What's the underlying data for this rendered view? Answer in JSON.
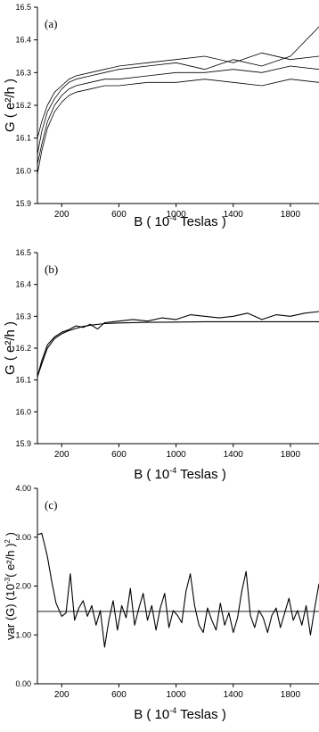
{
  "chart_data": [
    {
      "type": "line",
      "panel_label": "(a)",
      "xlabel": "B ( 10",
      "xlabel_exp": "-4",
      "xlabel_tail": " Teslas )",
      "ylabel": "G ( e²/h )",
      "xlim": [
        30,
        2000
      ],
      "ylim": [
        15.9,
        16.5
      ],
      "x_ticks": [
        200,
        600,
        1000,
        1400,
        1800
      ],
      "y_ticks": [
        "15.9",
        "16.0",
        "16.1",
        "16.2",
        "16.3",
        "16.4",
        "16.5"
      ],
      "y_tick_values": [
        15.9,
        16.0,
        16.1,
        16.2,
        16.3,
        16.4,
        16.5
      ],
      "series": [
        {
          "x": [
            30,
            60,
            100,
            150,
            200,
            250,
            300,
            400,
            500,
            600,
            800,
            1000,
            1200,
            1400,
            1600,
            1800,
            2000
          ],
          "values": [
            16.02,
            16.08,
            16.15,
            16.2,
            16.23,
            16.25,
            16.26,
            16.27,
            16.28,
            16.28,
            16.29,
            16.3,
            16.3,
            16.31,
            16.3,
            16.32,
            16.31
          ]
        },
        {
          "x": [
            30,
            60,
            100,
            150,
            200,
            250,
            300,
            400,
            500,
            600,
            800,
            1000,
            1200,
            1400,
            1600,
            1800,
            2000
          ],
          "values": [
            16.05,
            16.12,
            16.18,
            16.22,
            16.25,
            16.27,
            16.28,
            16.29,
            16.3,
            16.31,
            16.32,
            16.33,
            16.31,
            16.34,
            16.32,
            16.35,
            16.44
          ]
        },
        {
          "x": [
            30,
            60,
            100,
            150,
            200,
            250,
            300,
            400,
            500,
            600,
            800,
            1000,
            1200,
            1400,
            1600,
            1800,
            2000
          ],
          "values": [
            15.99,
            16.06,
            16.13,
            16.18,
            16.21,
            16.23,
            16.24,
            16.25,
            16.26,
            16.26,
            16.27,
            16.27,
            16.28,
            16.27,
            16.26,
            16.28,
            16.27
          ]
        },
        {
          "x": [
            30,
            60,
            100,
            150,
            200,
            250,
            300,
            400,
            500,
            600,
            800,
            1000,
            1200,
            1400,
            1600,
            1800,
            2000
          ],
          "values": [
            16.1,
            16.15,
            16.2,
            16.24,
            16.26,
            16.28,
            16.29,
            16.3,
            16.31,
            16.32,
            16.33,
            16.34,
            16.35,
            16.33,
            16.36,
            16.34,
            16.35
          ]
        }
      ]
    },
    {
      "type": "line",
      "panel_label": "(b)",
      "xlabel": "B ( 10",
      "xlabel_exp": "-4",
      "xlabel_tail": " Teslas )",
      "ylabel": "G ( e²/h )",
      "xlim": [
        30,
        2000
      ],
      "ylim": [
        15.9,
        16.5
      ],
      "x_ticks": [
        200,
        600,
        1000,
        1400,
        1800
      ],
      "y_ticks": [
        "15.9",
        "16.0",
        "16.1",
        "16.2",
        "16.3",
        "16.4",
        "16.5"
      ],
      "y_tick_values": [
        15.9,
        16.0,
        16.1,
        16.2,
        16.3,
        16.4,
        16.5
      ],
      "series": [
        {
          "x": [
            30,
            60,
            100,
            150,
            200,
            250,
            300,
            350,
            400,
            500,
            600,
            800,
            1000,
            1200,
            1400,
            1600,
            1800,
            2000
          ],
          "values": [
            16.11,
            16.15,
            16.2,
            16.23,
            16.245,
            16.255,
            16.262,
            16.268,
            16.272,
            16.277,
            16.279,
            16.281,
            16.282,
            16.283,
            16.283,
            16.283,
            16.283,
            16.283
          ]
        },
        {
          "x": [
            30,
            60,
            100,
            150,
            200,
            250,
            300,
            350,
            400,
            450,
            500,
            600,
            700,
            800,
            900,
            1000,
            1100,
            1200,
            1300,
            1400,
            1500,
            1600,
            1700,
            1800,
            1900,
            2000
          ],
          "values": [
            16.11,
            16.16,
            16.21,
            16.235,
            16.25,
            16.258,
            16.27,
            16.265,
            16.275,
            16.26,
            16.28,
            16.285,
            16.29,
            16.285,
            16.295,
            16.29,
            16.305,
            16.3,
            16.295,
            16.3,
            16.31,
            16.29,
            16.305,
            16.3,
            16.31,
            16.315
          ]
        }
      ]
    },
    {
      "type": "line",
      "panel_label": "(c)",
      "xlabel": "B ( 10",
      "xlabel_exp": "-4",
      "xlabel_tail": " Teslas )",
      "ylabel": "var (G)  (10",
      "ylabel_exp": "-3",
      "ylabel_tail": "( e²/h )",
      "ylabel_tail_exp": "2",
      "ylabel_end": " )",
      "xlim": [
        30,
        2000
      ],
      "ylim": [
        0.0,
        4.0
      ],
      "x_ticks": [
        200,
        600,
        1000,
        1400,
        1800
      ],
      "y_ticks": [
        "0.00",
        "1.00",
        "2.00",
        "3.00",
        "4.00"
      ],
      "y_tick_values": [
        0.0,
        1.0,
        2.0,
        3.0,
        4.0
      ],
      "reference_line": 1.48,
      "series": [
        {
          "x": [
            30,
            60,
            80,
            100,
            130,
            160,
            200,
            230,
            260,
            290,
            320,
            350,
            380,
            410,
            440,
            470,
            500,
            530,
            560,
            590,
            620,
            650,
            680,
            710,
            740,
            770,
            800,
            830,
            860,
            890,
            920,
            950,
            980,
            1010,
            1040,
            1070,
            1100,
            1130,
            1160,
            1190,
            1220,
            1250,
            1280,
            1310,
            1340,
            1370,
            1400,
            1430,
            1460,
            1490,
            1520,
            1550,
            1580,
            1610,
            1640,
            1670,
            1700,
            1730,
            1760,
            1790,
            1820,
            1850,
            1880,
            1910,
            1940,
            1970,
            2000
          ],
          "values": [
            3.05,
            3.08,
            2.85,
            2.6,
            2.1,
            1.65,
            1.38,
            1.45,
            2.25,
            1.3,
            1.55,
            1.7,
            1.38,
            1.6,
            1.2,
            1.5,
            0.75,
            1.3,
            1.7,
            1.1,
            1.6,
            1.35,
            1.95,
            1.2,
            1.55,
            1.85,
            1.3,
            1.6,
            1.1,
            1.55,
            1.85,
            1.15,
            1.5,
            1.4,
            1.25,
            1.9,
            2.25,
            1.6,
            1.2,
            1.05,
            1.55,
            1.3,
            1.1,
            1.65,
            1.2,
            1.45,
            1.05,
            1.35,
            1.9,
            2.3,
            1.4,
            1.15,
            1.5,
            1.35,
            1.05,
            1.4,
            1.55,
            1.15,
            1.45,
            1.75,
            1.3,
            1.5,
            1.2,
            1.6,
            1.0,
            1.55,
            2.05
          ]
        }
      ]
    }
  ]
}
